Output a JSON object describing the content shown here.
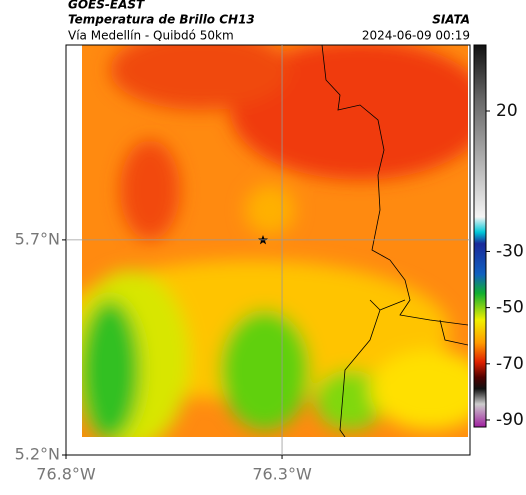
{
  "header": {
    "title": "GOES-EAST",
    "subtitle": "Temperatura de Brillo CH13",
    "source": "SIATA",
    "location": "Vía Medellín - Quibdó 50km",
    "datetime": "2024-06-09 00:19"
  },
  "map": {
    "lat_lim": [
      5.2,
      6.153
    ],
    "lon_lim": [
      -76.8,
      -75.865
    ],
    "lat_ticks": [
      {
        "value": 5.2,
        "label": "5.2°N"
      },
      {
        "value": 5.7,
        "label": "5.7°N"
      }
    ],
    "lon_ticks": [
      {
        "value": -76.8,
        "label": "76.8°W"
      },
      {
        "value": -76.3,
        "label": "76.3°W"
      }
    ],
    "grid": true,
    "colorbar": {
      "lim": [
        -92.5,
        43.5
      ],
      "ticks": [
        20,
        -30,
        -50,
        -70,
        -90
      ]
    }
  }
}
